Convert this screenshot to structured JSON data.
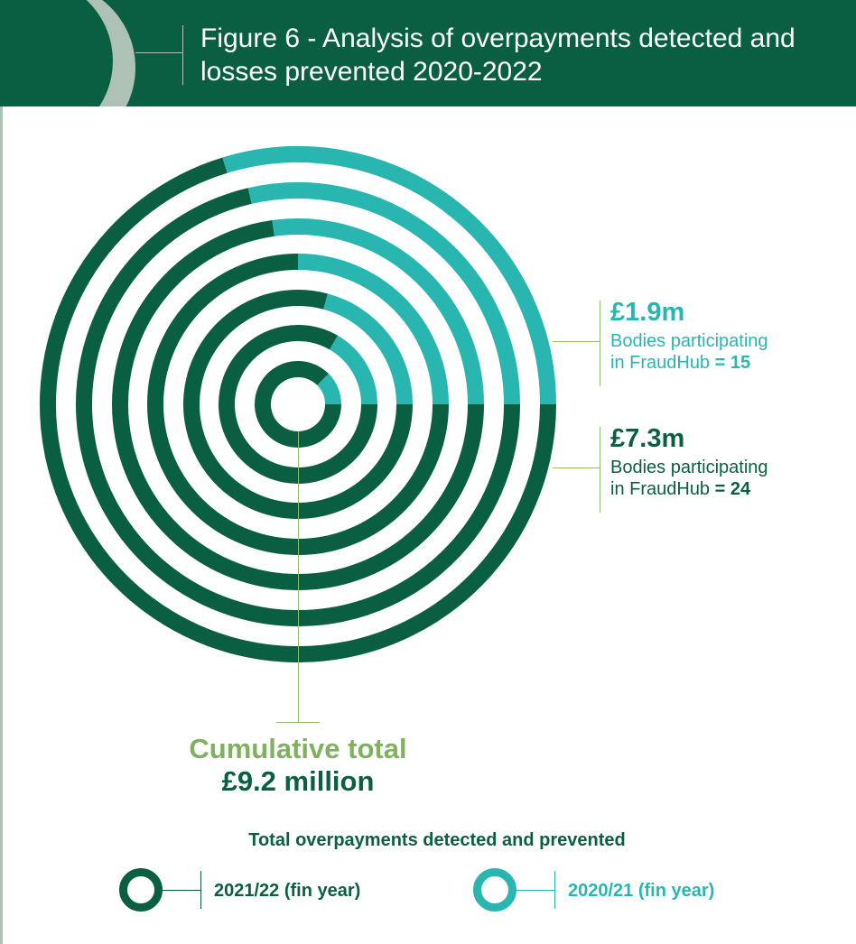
{
  "title": "Figure 6 - Analysis of overpayments detected and losses prevented 2020-2022",
  "colors": {
    "dark_green": "#0a5f43",
    "teal": "#2ab6b0",
    "light_green": "#7fb15f",
    "grey_green": "#aec1b7"
  },
  "chart_data": {
    "type": "pie",
    "segments": [
      {
        "amount_label": "£1.9m",
        "value_millions": 1.9,
        "desc_line1": "Bodies participating",
        "desc_line2_prefix": "in FraudHub",
        "desc_line2_suffix": "= 15",
        "bodies": 15,
        "color": "#2ab6b0"
      },
      {
        "amount_label": "£7.3m",
        "value_millions": 7.3,
        "desc_line1": "Bodies participating",
        "desc_line2_prefix": "in FraudHub",
        "desc_line2_suffix": "= 24",
        "bodies": 24,
        "color": "#0a5f43"
      }
    ],
    "total": {
      "label": "Cumulative total",
      "value": "£9.2 million",
      "value_millions": 9.2
    },
    "legend_title": "Total overpayments detected and prevented",
    "legend": [
      {
        "label": "2021/22 (fin year)",
        "color": "#0a5f43"
      },
      {
        "label": "2020/21 (fin year)",
        "color": "#2ab6b0"
      }
    ]
  }
}
